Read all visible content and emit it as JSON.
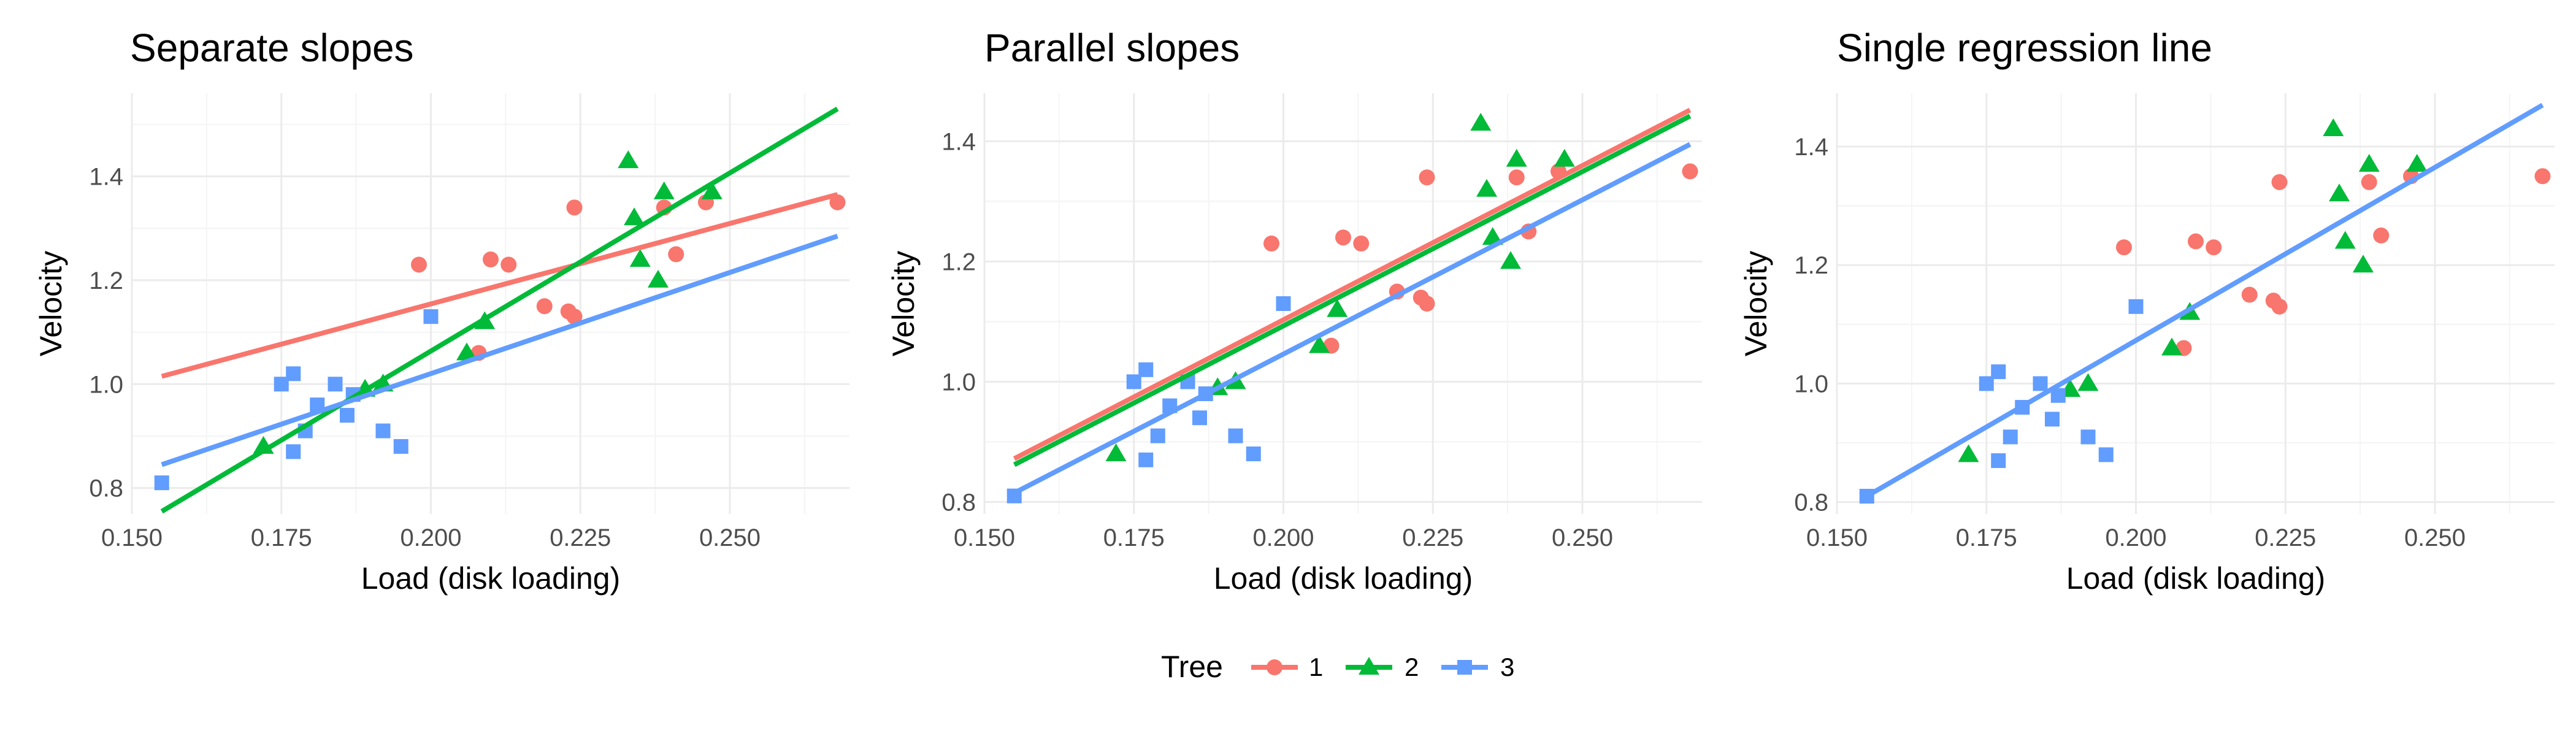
{
  "chart_data": [
    {
      "type": "scatter",
      "title": "Separate slopes",
      "xlabel": "Load (disk loading)",
      "ylabel": "Velocity",
      "xlim": [
        0.15,
        0.27
      ],
      "ylim": [
        0.75,
        1.56
      ],
      "xticks": [
        0.15,
        0.175,
        0.2,
        0.225,
        0.25
      ],
      "xtick_labels": [
        "0.150",
        "0.175",
        "0.200",
        "0.225",
        "0.250"
      ],
      "yticks": [
        0.8,
        1.0,
        1.2,
        1.4
      ],
      "ytick_labels": [
        "0.8",
        "1.0",
        "1.2",
        "1.4"
      ],
      "grid": true,
      "lines": [
        {
          "series": "1",
          "x": [
            0.155,
            0.268
          ],
          "y": [
            1.015,
            1.365
          ]
        },
        {
          "series": "2",
          "x": [
            0.155,
            0.268
          ],
          "y": [
            0.755,
            1.53
          ]
        },
        {
          "series": "3",
          "x": [
            0.155,
            0.268
          ],
          "y": [
            0.845,
            1.285
          ]
        }
      ]
    },
    {
      "type": "scatter",
      "title": "Parallel slopes",
      "xlabel": "Load (disk loading)",
      "ylabel": "Velocity",
      "xlim": [
        0.15,
        0.27
      ],
      "ylim": [
        0.78,
        1.48
      ],
      "xticks": [
        0.15,
        0.175,
        0.2,
        0.225,
        0.25
      ],
      "xtick_labels": [
        "0.150",
        "0.175",
        "0.200",
        "0.225",
        "0.250"
      ],
      "yticks": [
        0.8,
        1.0,
        1.2,
        1.4
      ],
      "ytick_labels": [
        "0.8",
        "1.0",
        "1.2",
        "1.4"
      ],
      "grid": true,
      "lines": [
        {
          "series": "1",
          "x": [
            0.155,
            0.268
          ],
          "y": [
            0.872,
            1.452
          ]
        },
        {
          "series": "2",
          "x": [
            0.155,
            0.268
          ],
          "y": [
            0.862,
            1.442
          ]
        },
        {
          "series": "3",
          "x": [
            0.155,
            0.268
          ],
          "y": [
            0.815,
            1.395
          ]
        }
      ]
    },
    {
      "type": "scatter",
      "title": "Single regression line",
      "xlabel": "Load (disk loading)",
      "ylabel": "Velocity",
      "xlim": [
        0.15,
        0.27
      ],
      "ylim": [
        0.78,
        1.49
      ],
      "xticks": [
        0.15,
        0.175,
        0.2,
        0.225,
        0.25
      ],
      "xtick_labels": [
        "0.150",
        "0.175",
        "0.200",
        "0.225",
        "0.250"
      ],
      "yticks": [
        0.8,
        1.0,
        1.2,
        1.4
      ],
      "ytick_labels": [
        "0.8",
        "1.0",
        "1.2",
        "1.4"
      ],
      "grid": true,
      "lines": [
        {
          "series": "all",
          "x": [
            0.155,
            0.268
          ],
          "y": [
            0.81,
            1.47
          ]
        }
      ]
    }
  ],
  "points": {
    "1": {
      "x": [
        0.198,
        0.21,
        0.213,
        0.219,
        0.223,
        0.224,
        0.224,
        0.208,
        0.239,
        0.241,
        0.246,
        0.268
      ],
      "y": [
        1.23,
        1.24,
        1.23,
        1.15,
        1.14,
        1.13,
        1.34,
        1.06,
        1.34,
        1.25,
        1.35,
        1.35
      ]
    },
    "2": {
      "x": [
        0.172,
        0.189,
        0.192,
        0.206,
        0.209,
        0.233,
        0.234,
        0.235,
        0.238,
        0.239,
        0.247
      ],
      "y": [
        0.88,
        0.99,
        1.0,
        1.06,
        1.12,
        1.43,
        1.32,
        1.24,
        1.2,
        1.37,
        1.37
      ]
    },
    "3": {
      "x": [
        0.155,
        0.175,
        0.177,
        0.177,
        0.179,
        0.181,
        0.184,
        0.186,
        0.187,
        0.192,
        0.195,
        0.2
      ],
      "y": [
        0.81,
        1.0,
        1.02,
        0.87,
        0.91,
        0.96,
        1.0,
        0.94,
        0.98,
        0.91,
        0.88,
        1.13
      ]
    }
  },
  "legend": {
    "title": "Tree",
    "position": "bottom",
    "items": [
      {
        "label": "1",
        "color": "#F8766D",
        "shape": "circle"
      },
      {
        "label": "2",
        "color": "#00BA38",
        "shape": "triangle"
      },
      {
        "label": "3",
        "color": "#619CFF",
        "shape": "square"
      }
    ]
  },
  "colors": {
    "1": "#F8766D",
    "2": "#00BA38",
    "3": "#619CFF",
    "all": "#619CFF"
  },
  "shapes": {
    "1": "circle",
    "2": "triangle",
    "3": "square"
  }
}
